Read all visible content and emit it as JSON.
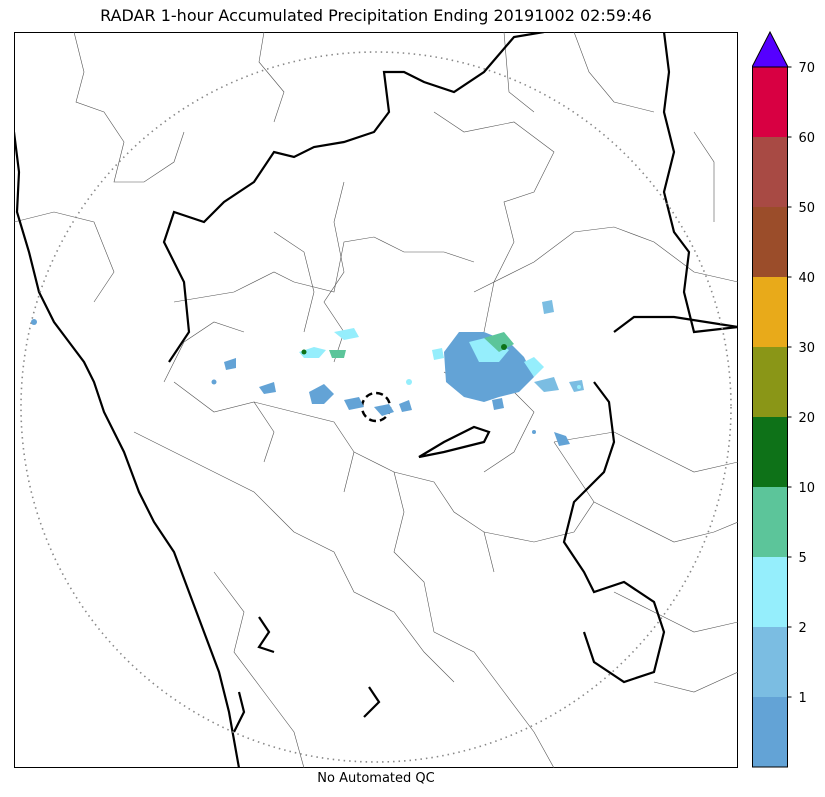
{
  "title": "RADAR 1-hour Accumulated Precipitation Ending 20191002 02:59:46",
  "footer": "No Automated QC",
  "colorbar": {
    "levels": [
      {
        "label": "",
        "color": "#63a3d6"
      },
      {
        "label": "1",
        "color": "#7bbde2"
      },
      {
        "label": "2",
        "color": "#95eefc"
      },
      {
        "label": "5",
        "color": "#5cc59a"
      },
      {
        "label": "10",
        "color": "#0e7218"
      },
      {
        "label": "20",
        "color": "#8a9617"
      },
      {
        "label": "30",
        "color": "#e8aa1a"
      },
      {
        "label": "40",
        "color": "#9b4d2a"
      },
      {
        "label": "50",
        "color": "#a84a44"
      },
      {
        "label": "60",
        "color": "#d80042"
      }
    ],
    "top_label": "70",
    "extend_color": "#5500ff"
  },
  "map": {
    "range_ring": "dotted",
    "radar_site_marker": "dashed-circle"
  }
}
